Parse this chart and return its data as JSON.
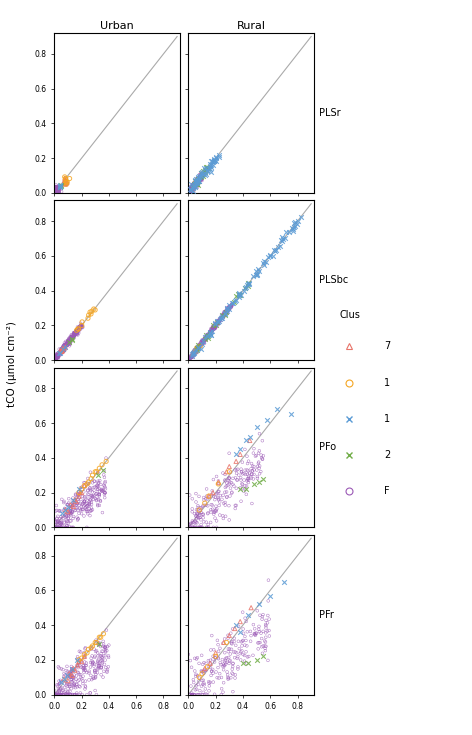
{
  "col_labels": [
    "Urban",
    "Rural"
  ],
  "row_labels": [
    "PLSr",
    "PLSbc",
    "PFo",
    "PFr"
  ],
  "ylabel": "tCO (μmol cm⁻²)",
  "axis_ticks": [
    0.0,
    0.2,
    0.4,
    0.6,
    0.8
  ],
  "axis_lim": [
    0.0,
    0.92
  ],
  "legend_title": "Clus",
  "legend_labels": [
    "7",
    "1",
    "1",
    "2",
    "F"
  ],
  "diag_color": "#aaaaaa",
  "cluster_colors": {
    "7": "#e8746a",
    "1o": "#f5a623",
    "1x": "#5b9bd5",
    "2x": "#70ad47",
    "F": "#9b59b6"
  },
  "figsize": [
    4.72,
    7.35
  ],
  "dpi": 100
}
